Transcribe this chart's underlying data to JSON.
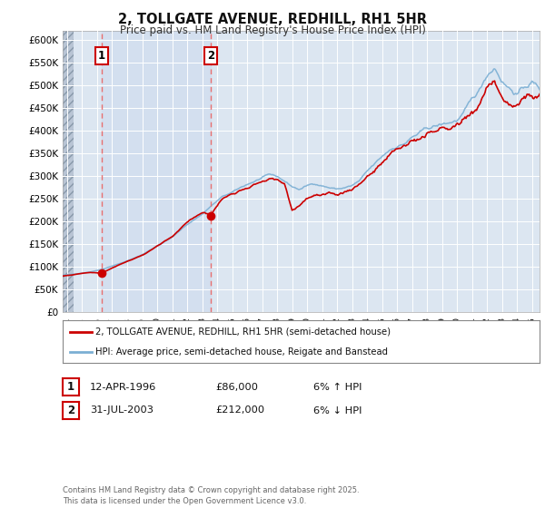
{
  "title_line1": "2, TOLLGATE AVENUE, REDHILL, RH1 5HR",
  "title_line2": "Price paid vs. HM Land Registry's House Price Index (HPI)",
  "background_color": "#ffffff",
  "plot_bg_color": "#dce6f1",
  "hatch_bg_color": "#c8d0dc",
  "grid_color": "#ffffff",
  "ylim": [
    0,
    620000
  ],
  "yticks": [
    0,
    50000,
    100000,
    150000,
    200000,
    250000,
    300000,
    350000,
    400000,
    450000,
    500000,
    550000,
    600000
  ],
  "ytick_labels": [
    "£0",
    "£50K",
    "£100K",
    "£150K",
    "£200K",
    "£250K",
    "£300K",
    "£350K",
    "£400K",
    "£450K",
    "£500K",
    "£550K",
    "£600K"
  ],
  "xlim_start": 1993.7,
  "xlim_end": 2025.5,
  "sale1_date": 1996.28,
  "sale1_price": 86000,
  "sale2_date": 2003.58,
  "sale2_price": 212000,
  "sale1_label": "1",
  "sale2_label": "2",
  "red_line_color": "#cc0000",
  "blue_line_color": "#7bafd4",
  "dot_color": "#cc0000",
  "dashed_line_color": "#e87070",
  "legend_label_red": "2, TOLLGATE AVENUE, REDHILL, RH1 5HR (semi-detached house)",
  "legend_label_blue": "HPI: Average price, semi-detached house, Reigate and Banstead",
  "footnote": "Contains HM Land Registry data © Crown copyright and database right 2025.\nThis data is licensed under the Open Government Licence v3.0."
}
